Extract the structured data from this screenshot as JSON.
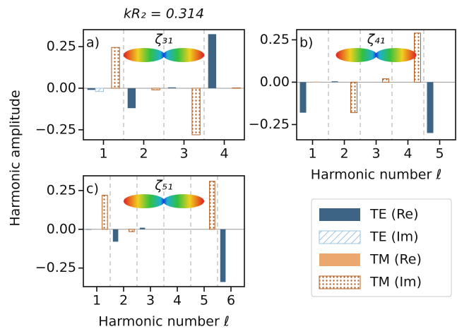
{
  "figure": {
    "title": "kR₂ = 0.314",
    "ylabel": "Harmonic amplitude"
  },
  "chart_data": [
    {
      "type": "bar",
      "label": "a)",
      "annotation": "ζ₃₁",
      "x": [
        1,
        2,
        3,
        4
      ],
      "xlim": [
        0.5,
        4.5
      ],
      "xticks": [
        1,
        2,
        3,
        4
      ],
      "ylim": [
        -0.31,
        0.352
      ],
      "yticks": [
        {
          "value": 0.25,
          "label": "0.25"
        },
        {
          "value": 0,
          "label": "0.00"
        },
        {
          "value": -0.25,
          "label": "−0.25"
        }
      ],
      "series": [
        {
          "name": "TE (Re)",
          "color": "#3d6484",
          "fill": "solid",
          "values": [
            -0.01,
            -0.12,
            0.005,
            0.325
          ]
        },
        {
          "name": "TE (Im)",
          "color": "#9ec3dd",
          "fill": "hatch",
          "values": [
            -0.02,
            0,
            0,
            0
          ]
        },
        {
          "name": "TM (Re)",
          "color": "#eaa86f",
          "fill": "solid",
          "values": [
            0,
            0,
            0,
            0
          ]
        },
        {
          "name": "TM (Im)",
          "color": "#b5652a",
          "fill": "dots",
          "values": [
            0.245,
            -0.01,
            -0.28,
            0.002
          ]
        }
      ]
    },
    {
      "type": "bar",
      "label": "b)",
      "annotation": "ζ₄₁",
      "xlabel": "Harmonic number ℓ",
      "x": [
        1,
        2,
        3,
        4,
        5
      ],
      "xlim": [
        0.5,
        5.5
      ],
      "xticks": [
        1,
        2,
        3,
        4,
        5
      ],
      "ylim": [
        -0.34,
        0.31
      ],
      "yticks": [
        {
          "value": 0.25,
          "label": "0.25"
        },
        {
          "value": 0,
          "label": "0.00"
        },
        {
          "value": -0.25,
          "label": "−0.25"
        }
      ],
      "series": [
        {
          "name": "TE (Re)",
          "color": "#3d6484",
          "fill": "solid",
          "values": [
            -0.18,
            0.005,
            0,
            0,
            -0.3
          ]
        },
        {
          "name": "TE (Im)",
          "color": "#9ec3dd",
          "fill": "hatch",
          "values": [
            0,
            0,
            0,
            0,
            0
          ]
        },
        {
          "name": "TM (Re)",
          "color": "#eaa86f",
          "fill": "solid",
          "values": [
            0.003,
            0,
            0,
            0,
            0
          ]
        },
        {
          "name": "TM (Im)",
          "color": "#b5652a",
          "fill": "dots",
          "values": [
            0,
            -0.18,
            0.02,
            0.29,
            0
          ]
        }
      ]
    },
    {
      "type": "bar",
      "label": "c)",
      "annotation": "ζ₅₁",
      "xlabel": "Harmonic number ℓ",
      "x": [
        1,
        2,
        3,
        4,
        5,
        6
      ],
      "xlim": [
        0.5,
        6.5
      ],
      "xticks": [
        1,
        2,
        3,
        4,
        5,
        6
      ],
      "ylim": [
        -0.37,
        0.345
      ],
      "yticks": [
        {
          "value": 0.25,
          "label": "0.25"
        },
        {
          "value": 0,
          "label": "0.00"
        },
        {
          "value": -0.25,
          "label": "−0.25"
        }
      ],
      "series": [
        {
          "name": "TE (Re)",
          "color": "#3d6484",
          "fill": "solid",
          "values": [
            -0.003,
            -0.08,
            0.01,
            0,
            0,
            -0.34
          ]
        },
        {
          "name": "TE (Im)",
          "color": "#9ec3dd",
          "fill": "hatch",
          "values": [
            0,
            0,
            0,
            0,
            0,
            0
          ]
        },
        {
          "name": "TM (Re)",
          "color": "#eaa86f",
          "fill": "solid",
          "values": [
            0,
            0,
            0,
            0,
            0,
            0
          ]
        },
        {
          "name": "TM (Im)",
          "color": "#b5652a",
          "fill": "dots",
          "values": [
            0.22,
            -0.015,
            0,
            0,
            0.31,
            0
          ]
        }
      ]
    }
  ]
}
